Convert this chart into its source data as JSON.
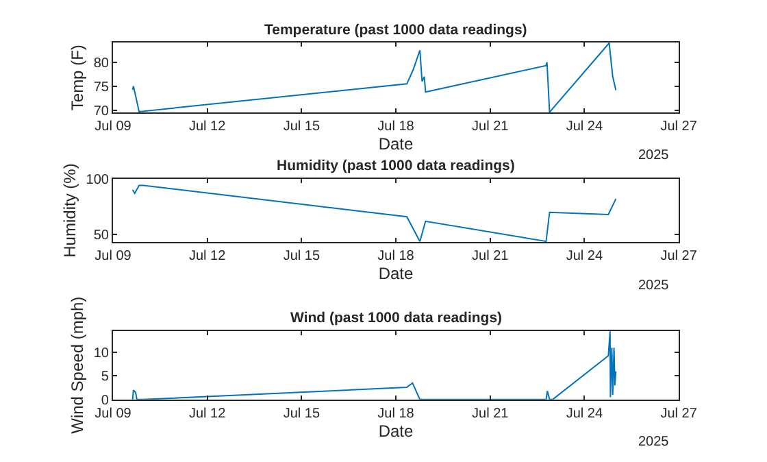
{
  "chart_data": [
    {
      "type": "line",
      "title": "Temperature (past 1000 data readings)",
      "xlabel": "Date",
      "ylabel": "Temp (F)",
      "annotations": [
        "2025"
      ],
      "x": [
        "2025-07-09T15:00",
        "2025-07-09T15:37",
        "2025-07-09T17:17",
        "2025-07-09T19:57",
        "2025-07-18T08:24",
        "2025-07-18T13:20",
        "2025-07-18T18:22",
        "2025-07-18T20:02",
        "2025-07-18T21:42",
        "2025-07-18T22:40",
        "2025-07-22T18:43",
        "2025-07-22T19:23",
        "2025-07-22T21:23",
        "2025-07-24T18:55",
        "2025-07-24T21:35",
        "2025-07-25T00:00"
      ],
      "series": [
        {
          "color": "#0072bd",
          "values": [
            74.3,
            75,
            73,
            69.7,
            75.5,
            78.5,
            82.5,
            76,
            77,
            73.8,
            79.3,
            80,
            69.6,
            84,
            77,
            74.2
          ]
        }
      ],
      "xlim": [
        "2025-07-09",
        "2025-07-27"
      ],
      "xticks": [
        {
          "value": "2025-07-09",
          "label": "Jul 09"
        },
        {
          "value": "2025-07-12",
          "label": "Jul 12"
        },
        {
          "value": "2025-07-15",
          "label": "Jul 15"
        },
        {
          "value": "2025-07-18",
          "label": "Jul 18"
        },
        {
          "value": "2025-07-21",
          "label": "Jul 21"
        },
        {
          "value": "2025-07-24",
          "label": "Jul 24"
        },
        {
          "value": "2025-07-27",
          "label": "Jul 27"
        }
      ],
      "ylim": [
        69.5,
        84.1
      ],
      "yticks": [
        70,
        75,
        80
      ],
      "marker": "none",
      "line_style": "solid"
    },
    {
      "type": "line",
      "title": "Humidity (past 1000 data readings)",
      "xlabel": "Date",
      "ylabel": "Humidity (%)",
      "annotations": [
        "2025"
      ],
      "x": [
        "2025-07-09T15:00",
        "2025-07-09T16:37",
        "2025-07-09T19:57",
        "2025-07-09T23:16",
        "2025-07-18T08:24",
        "2025-07-18T18:22",
        "2025-07-18T22:40",
        "2025-07-22T18:43",
        "2025-07-22T21:23",
        "2025-07-24T18:15",
        "2025-07-25T00:00"
      ],
      "series": [
        {
          "color": "#0072bd",
          "values": [
            90,
            87,
            94,
            94,
            66,
            44,
            62,
            44,
            70,
            68,
            82
          ]
        }
      ],
      "xlim": [
        "2025-07-09",
        "2025-07-27"
      ],
      "xticks": [
        {
          "value": "2025-07-09",
          "label": "Jul 09"
        },
        {
          "value": "2025-07-12",
          "label": "Jul 12"
        },
        {
          "value": "2025-07-15",
          "label": "Jul 15"
        },
        {
          "value": "2025-07-18",
          "label": "Jul 18"
        },
        {
          "value": "2025-07-21",
          "label": "Jul 21"
        },
        {
          "value": "2025-07-24",
          "label": "Jul 24"
        },
        {
          "value": "2025-07-27",
          "label": "Jul 27"
        }
      ],
      "ylim": [
        43.3,
        100
      ],
      "yticks": [
        50,
        100
      ],
      "marker": "none",
      "line_style": "solid"
    },
    {
      "type": "line",
      "title": "Wind (past 1000 data readings)",
      "xlabel": "Date",
      "ylabel": "Wind Speed (mph)",
      "annotations": [
        "2025"
      ],
      "x": [
        "2025-07-09T15:00",
        "2025-07-09T15:37",
        "2025-07-09T17:17",
        "2025-07-09T18:17",
        "2025-07-09T23:16",
        "2025-07-18T08:24",
        "2025-07-18T12:43",
        "2025-07-18T18:22",
        "2025-07-22T18:43",
        "2025-07-22T19:43",
        "2025-07-22T21:23",
        "2025-07-22T23:42",
        "2025-07-24T18:15",
        "2025-07-24T19:35",
        "2025-07-24T19:50",
        "2025-07-24T20:55",
        "2025-07-24T21:35",
        "2025-07-24T22:35",
        "2025-07-24T23:15",
        "2025-07-25T00:00"
      ],
      "series": [
        {
          "color": "#0072bd",
          "values": [
            0,
            2,
            1.5,
            0,
            0,
            2.6,
            3.5,
            0,
            0,
            1.8,
            0,
            0,
            9.3,
            14.5,
            0.5,
            11,
            1,
            11,
            3,
            6
          ]
        }
      ],
      "xlim": [
        "2025-07-09",
        "2025-07-27"
      ],
      "xticks": [
        {
          "value": "2025-07-09",
          "label": "Jul 09"
        },
        {
          "value": "2025-07-12",
          "label": "Jul 12"
        },
        {
          "value": "2025-07-15",
          "label": "Jul 15"
        },
        {
          "value": "2025-07-18",
          "label": "Jul 18"
        },
        {
          "value": "2025-07-21",
          "label": "Jul 21"
        },
        {
          "value": "2025-07-24",
          "label": "Jul 24"
        },
        {
          "value": "2025-07-27",
          "label": "Jul 27"
        }
      ],
      "ylim": [
        0,
        14.6
      ],
      "yticks": [
        0,
        5,
        10
      ],
      "marker": "none",
      "line_style": "solid"
    }
  ]
}
